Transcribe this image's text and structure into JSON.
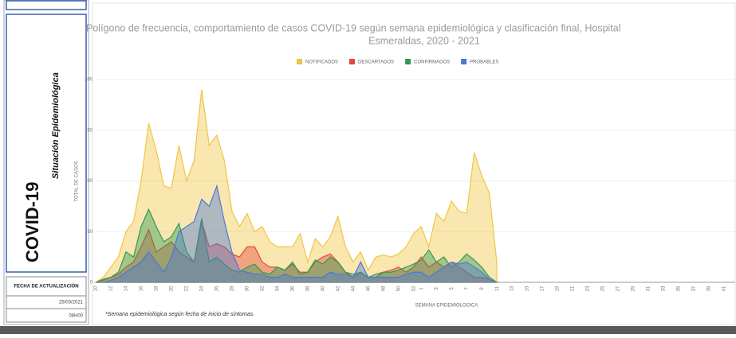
{
  "sidebar": {
    "title": "COVID-19",
    "subtitle": "Situación Epidemiológica",
    "update_label": "FECHA DE ACTUALIZACIÓN",
    "update_date": "25/03/2021",
    "update_time": "08H00"
  },
  "footnote": "*Semana epidemiológica según fecha de inicio de síntomas.",
  "chart_data": {
    "type": "area",
    "title": [
      "Polígono de frecuencia, comportamiento de casos COVID-19 según semana epidemiológica y clasificación final, Hospital",
      "Esmeraldas, 2020 - 2021"
    ],
    "xlabel": "SEMANA EPIDEMIOLOGICA",
    "ylabel": "TOTAL DE CASOS",
    "categories": [
      "10",
      null,
      "12",
      null,
      "14",
      null,
      "16",
      null,
      "18",
      null,
      "20",
      null,
      "22",
      null,
      "24",
      null,
      "26",
      null,
      "28",
      null,
      "30",
      null,
      "32",
      null,
      "34",
      null,
      "36",
      null,
      "38",
      null,
      "40",
      null,
      "42",
      null,
      "44",
      null,
      "46",
      null,
      "48",
      null,
      "50",
      null,
      "52",
      "1",
      null,
      "3",
      null,
      "5",
      null,
      "7",
      null,
      "9",
      null,
      "11",
      null,
      "13",
      null,
      "15",
      null,
      "17",
      null,
      "19",
      null,
      "21",
      null,
      "23",
      null,
      "25",
      null,
      "27",
      null,
      "29",
      null,
      "31",
      null,
      "33",
      null,
      "35",
      null,
      "37",
      null,
      "39",
      null,
      "41"
    ],
    "series": [
      {
        "name": "NOTIFICADOS",
        "color": "#f0c541",
        "values": [
          0,
          5,
          15,
          25,
          50,
          60,
          100,
          157,
          130,
          95,
          93,
          135,
          100,
          120,
          190,
          135,
          145,
          120,
          70,
          55,
          68,
          50,
          55,
          40,
          35,
          35,
          35,
          48,
          20,
          43,
          35,
          45,
          65,
          35,
          20,
          30,
          12,
          25,
          27,
          25,
          28,
          35,
          48,
          55,
          35,
          68,
          60,
          80,
          70,
          68,
          128,
          105,
          88,
          18,
          null,
          null,
          null,
          null,
          null,
          null,
          null,
          null,
          null,
          null,
          null,
          null,
          null,
          null,
          null,
          null,
          null,
          null,
          null,
          null,
          null,
          null,
          null,
          null,
          null,
          null,
          null,
          null,
          null,
          null
        ]
      },
      {
        "name": "DESCARTADOS",
        "color": "#e2483d",
        "values": [
          0,
          2,
          5,
          8,
          15,
          20,
          35,
          52,
          30,
          35,
          40,
          30,
          25,
          20,
          60,
          35,
          38,
          35,
          28,
          25,
          35,
          35,
          20,
          15,
          15,
          12,
          18,
          10,
          10,
          20,
          25,
          28,
          20,
          10,
          5,
          10,
          5,
          5,
          10,
          12,
          15,
          10,
          15,
          25,
          15,
          20,
          15,
          20,
          15,
          10,
          5,
          5,
          3,
          0,
          null,
          null,
          null,
          null,
          null,
          null,
          null,
          null,
          null,
          null,
          null,
          null,
          null,
          null,
          null,
          null,
          null,
          null,
          null,
          null,
          null,
          null,
          null,
          null,
          null,
          null,
          null,
          null,
          null,
          null
        ]
      },
      {
        "name": "CONFIRMADOS",
        "color": "#2e9a55",
        "values": [
          0,
          3,
          5,
          10,
          30,
          25,
          55,
          72,
          55,
          40,
          45,
          58,
          30,
          20,
          63,
          20,
          25,
          18,
          12,
          10,
          15,
          18,
          10,
          8,
          15,
          12,
          20,
          8,
          10,
          22,
          18,
          25,
          20,
          10,
          8,
          10,
          5,
          8,
          10,
          10,
          12,
          15,
          18,
          22,
          32,
          20,
          25,
          15,
          20,
          28,
          22,
          15,
          5,
          0,
          null,
          null,
          null,
          null,
          null,
          null,
          null,
          null,
          null,
          null,
          null,
          null,
          null,
          null,
          null,
          null,
          null,
          null,
          null,
          null,
          null,
          null,
          null,
          null,
          null,
          null,
          null,
          null,
          null,
          null
        ]
      },
      {
        "name": "PROBABLES",
        "color": "#4a78d6",
        "values": [
          0,
          0,
          2,
          5,
          10,
          15,
          20,
          30,
          20,
          10,
          25,
          50,
          55,
          60,
          82,
          75,
          95,
          60,
          30,
          12,
          10,
          8,
          8,
          5,
          5,
          8,
          5,
          5,
          5,
          5,
          5,
          10,
          8,
          8,
          5,
          20,
          5,
          5,
          5,
          5,
          5,
          8,
          10,
          10,
          5,
          10,
          15,
          20,
          18,
          20,
          15,
          10,
          3,
          0,
          null,
          null,
          null,
          null,
          null,
          null,
          null,
          null,
          null,
          null,
          null,
          null,
          null,
          null,
          null,
          null,
          null,
          null,
          null,
          null,
          null,
          null,
          null,
          null,
          null,
          null,
          null,
          null,
          null,
          null
        ]
      }
    ],
    "ylim": [
      0,
      200
    ],
    "yticks": [
      0,
      50,
      100,
      150,
      200
    ],
    "grid": true,
    "legend": "top"
  }
}
